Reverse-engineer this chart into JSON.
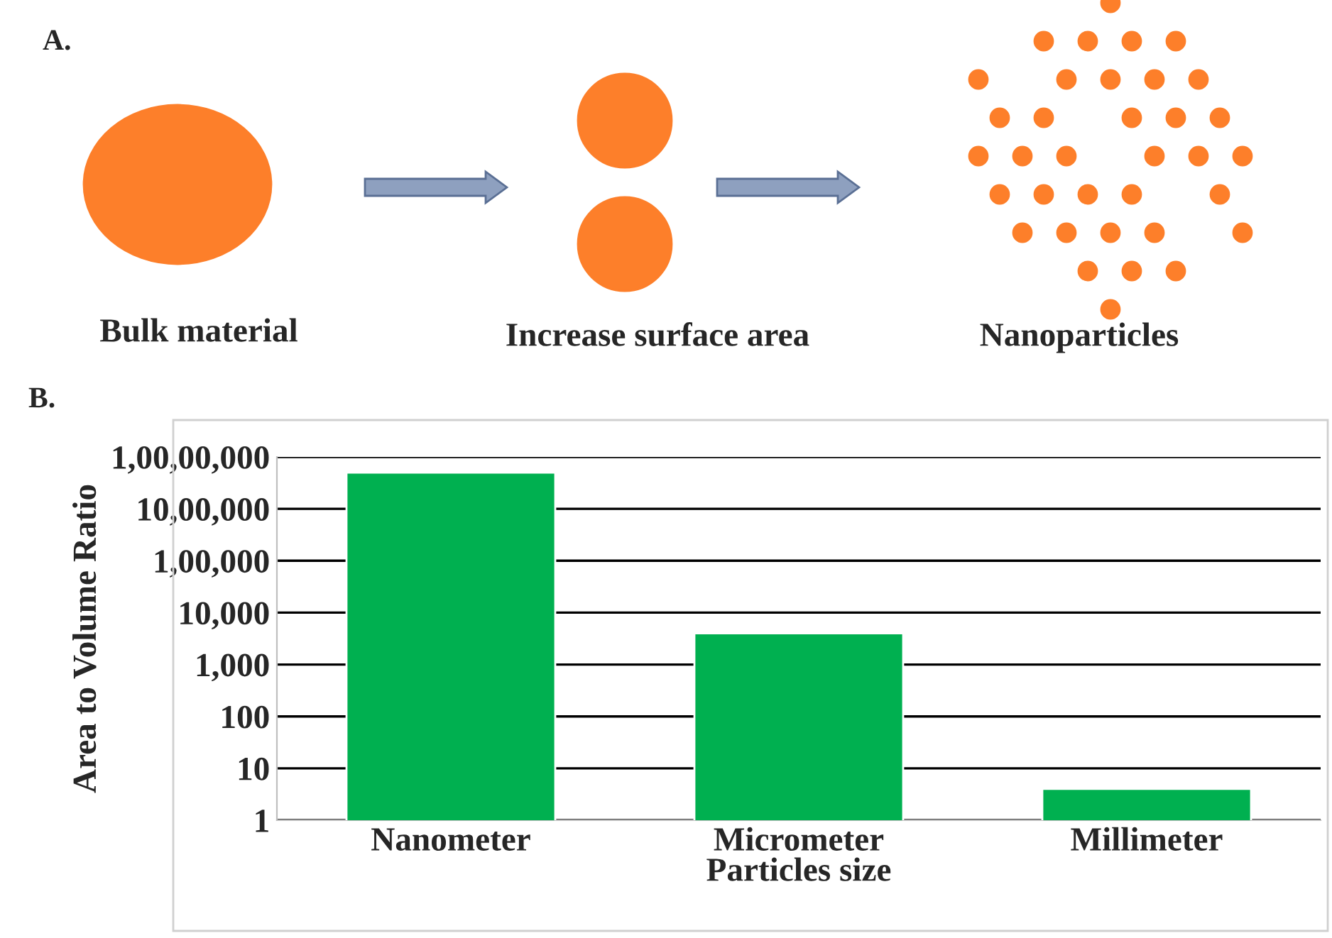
{
  "chart_data": [
    {
      "type": "other",
      "title": "A.",
      "annotations": [
        "Bulk material",
        "Increase surface area",
        "Nanoparticles"
      ]
    },
    {
      "type": "bar",
      "title": "B.",
      "xlabel": "Particles size",
      "ylabel": "Area to Volume Ratio",
      "categories": [
        "Nanometer",
        "Micrometer",
        "Millimeter"
      ],
      "values": [
        5000000,
        4000,
        4
      ],
      "color": "#00b050",
      "log": true,
      "ylim": [
        1,
        10000000
      ],
      "yticks": [
        1,
        10,
        100,
        {
          "value": 1000,
          "label": "1,000"
        },
        {
          "value": 10000,
          "label": "10,000"
        },
        {
          "value": 100000,
          "label": "1,00,000"
        },
        {
          "value": 1000000,
          "label": "10,00,000"
        },
        {
          "value": 10000000,
          "label": "1,00,00,000"
        }
      ],
      "grid": "y"
    }
  ]
}
